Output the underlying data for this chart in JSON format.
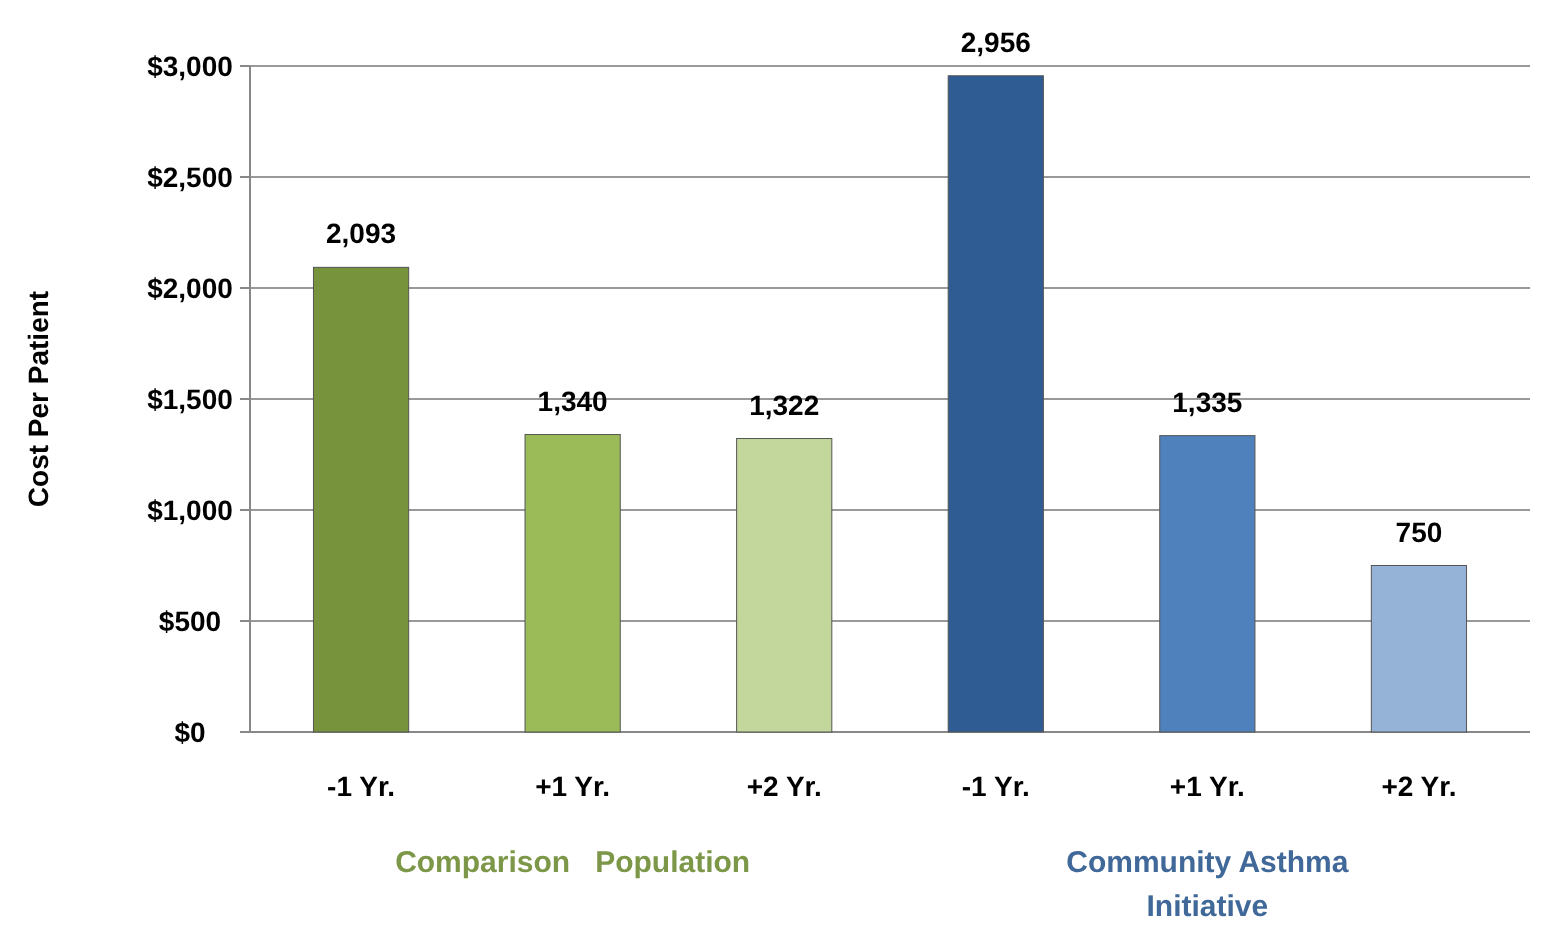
{
  "chart_data": {
    "type": "bar",
    "ylabel": "Cost Per Patient",
    "categories": [
      "-1 Yr.",
      "+1 Yr.",
      "+2 Yr.",
      "-1 Yr.",
      "+1 Yr.",
      "+2 Yr."
    ],
    "values": [
      2093,
      1340,
      1322,
      2956,
      1335,
      750
    ],
    "colors": [
      "#77933c",
      "#9bbb59",
      "#c3d69b",
      "#2f5c92",
      "#4f81bd",
      "#95b3d7"
    ],
    "value_labels": [
      "2,093",
      "1,340",
      "1,322",
      "2,956",
      "1,335",
      "750"
    ],
    "ylim": [
      0,
      3000
    ],
    "yticks": [
      {
        "value": 0,
        "label": "$0"
      },
      {
        "value": 500,
        "label": "$500"
      },
      {
        "value": 1000,
        "label": "$1,000"
      },
      {
        "value": 1500,
        "label": "$1,500"
      },
      {
        "value": 2000,
        "label": "$2,000"
      },
      {
        "value": 2500,
        "label": "$2,500"
      },
      {
        "value": 3000,
        "label": "$3,000"
      }
    ],
    "grid": true,
    "annotations": [
      "Comparison   Population",
      "Community Asthma Initiative"
    ]
  }
}
